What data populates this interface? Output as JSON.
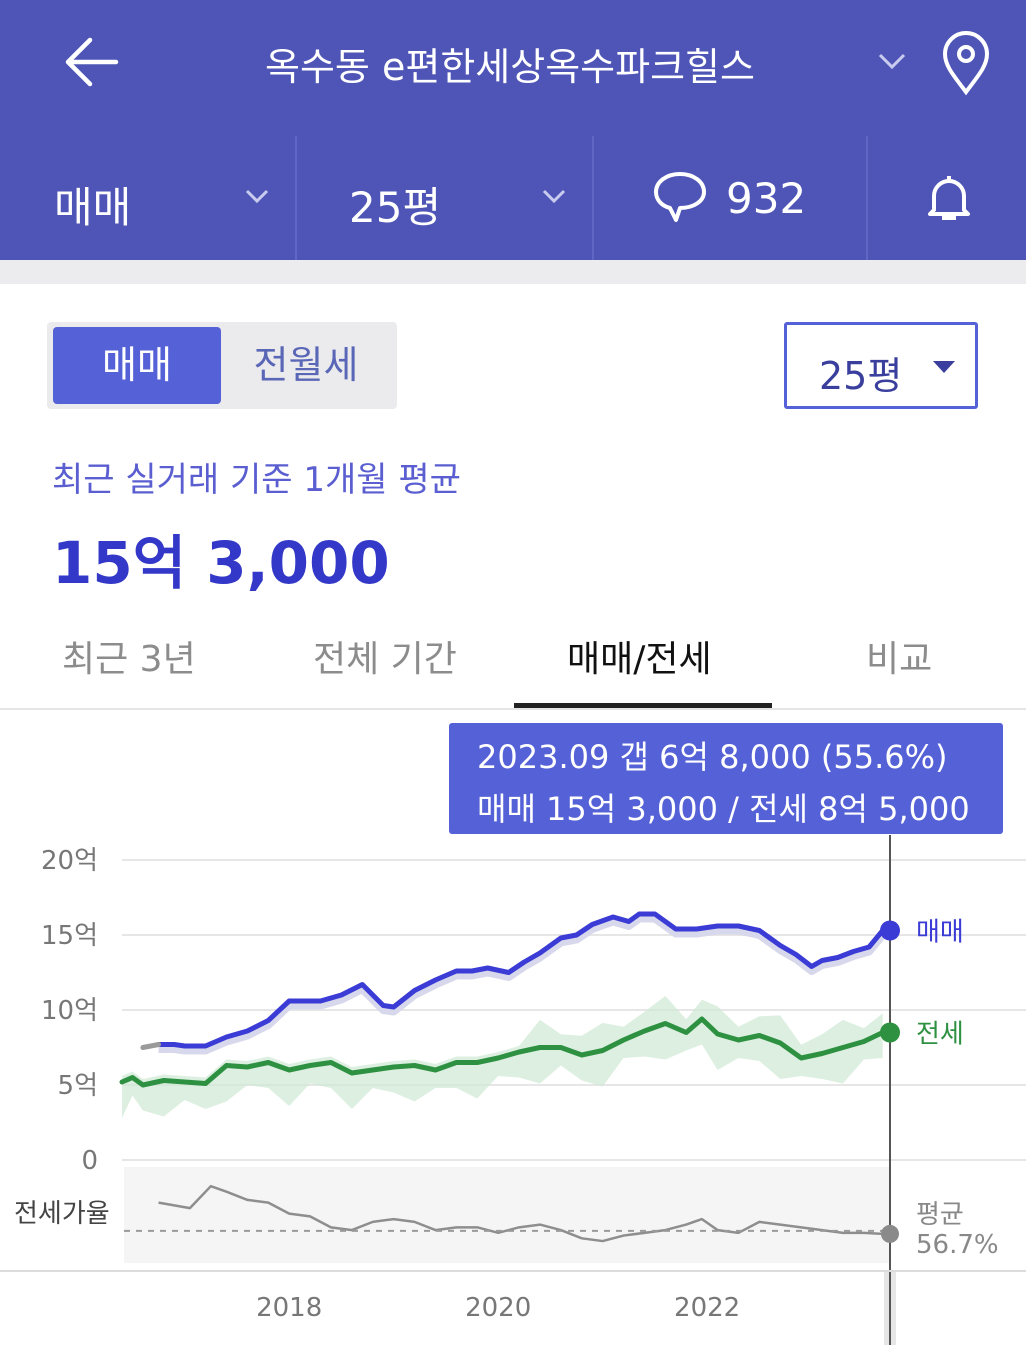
{
  "header": {
    "title": "옥수동 e편한세상옥수파크힐스"
  },
  "subbar": {
    "trade_type": "매매",
    "size": "25평",
    "comment_count": "932"
  },
  "segment": {
    "active": "매매",
    "inactive": "전월세"
  },
  "size_select": {
    "value": "25평"
  },
  "summary": {
    "caption": "최근 실거래 기준 1개월 평균",
    "price": "15억 3,000"
  },
  "tabs": [
    {
      "label": "최근 3년",
      "active": false
    },
    {
      "label": "전체 기간",
      "active": false
    },
    {
      "label": "매매/전세",
      "active": true
    },
    {
      "label": "비교",
      "active": false
    }
  ],
  "tooltip": {
    "line1": "2023.09  갭 6억 8,000 (55.6%)",
    "line2": "매매 15억 3,000 / 전세 8억 5,000"
  },
  "colors": {
    "header_bg": "#4e55b6",
    "accent": "#5561d6",
    "sale": "#3b3bd6",
    "jeonse": "#2e9142",
    "ratio": "#8e8e8e"
  },
  "chart_data": {
    "type": "line",
    "y_ticks": [
      "20억",
      "15억",
      "10억",
      "5억",
      "0"
    ],
    "ylim": [
      0,
      20
    ],
    "x_ticks": [
      "2018",
      "2020",
      "2022"
    ],
    "xlim": [
      2016.4,
      2023.75
    ],
    "series": [
      {
        "name": "매매",
        "x": [
          2016.75,
          2016.9,
          2017.0,
          2017.2,
          2017.4,
          2017.6,
          2017.8,
          2018.0,
          2018.15,
          2018.3,
          2018.5,
          2018.7,
          2018.9,
          2019.0,
          2019.2,
          2019.4,
          2019.6,
          2019.75,
          2019.9,
          2020.1,
          2020.25,
          2020.4,
          2020.6,
          2020.75,
          2020.9,
          2021.1,
          2021.25,
          2021.35,
          2021.5,
          2021.7,
          2021.9,
          2022.1,
          2022.3,
          2022.5,
          2022.7,
          2022.85,
          2023.0,
          2023.1,
          2023.25,
          2023.4,
          2023.55,
          2023.68
        ],
        "values": [
          7.7,
          7.7,
          7.6,
          7.6,
          8.2,
          8.6,
          9.3,
          10.6,
          10.6,
          10.6,
          11.0,
          11.7,
          10.3,
          10.2,
          11.3,
          12.0,
          12.6,
          12.6,
          12.8,
          12.5,
          13.2,
          13.8,
          14.8,
          15.0,
          15.7,
          16.2,
          15.9,
          16.4,
          16.4,
          15.4,
          15.4,
          15.6,
          15.6,
          15.3,
          14.3,
          13.7,
          12.9,
          13.3,
          13.5,
          13.9,
          14.2,
          15.3
        ]
      },
      {
        "name": "전세",
        "x": [
          2016.4,
          2016.5,
          2016.6,
          2016.8,
          2017.0,
          2017.2,
          2017.4,
          2017.6,
          2017.8,
          2018.0,
          2018.2,
          2018.4,
          2018.6,
          2018.8,
          2019.0,
          2019.2,
          2019.4,
          2019.6,
          2019.8,
          2020.0,
          2020.2,
          2020.4,
          2020.6,
          2020.8,
          2021.0,
          2021.2,
          2021.4,
          2021.6,
          2021.8,
          2021.95,
          2022.1,
          2022.3,
          2022.5,
          2022.7,
          2022.9,
          2023.1,
          2023.3,
          2023.5,
          2023.68
        ],
        "values": [
          5.2,
          5.5,
          5.0,
          5.3,
          5.2,
          5.1,
          6.3,
          6.2,
          6.5,
          6.0,
          6.3,
          6.5,
          5.8,
          6.0,
          6.2,
          6.3,
          6.0,
          6.5,
          6.5,
          6.8,
          7.2,
          7.5,
          7.5,
          7.0,
          7.3,
          8.0,
          8.6,
          9.1,
          8.5,
          9.4,
          8.4,
          8.0,
          8.3,
          7.8,
          6.8,
          7.1,
          7.5,
          7.9,
          8.5
        ]
      },
      {
        "name": "전세가율",
        "x": [
          2016.75,
          2016.9,
          2017.05,
          2017.25,
          2017.4,
          2017.6,
          2017.8,
          2018.0,
          2018.2,
          2018.4,
          2018.6,
          2018.8,
          2019.0,
          2019.2,
          2019.4,
          2019.6,
          2019.8,
          2020.0,
          2020.2,
          2020.4,
          2020.6,
          2020.8,
          2021.0,
          2021.2,
          2021.4,
          2021.6,
          2021.8,
          2021.95,
          2022.1,
          2022.3,
          2022.5,
          2022.7,
          2022.9,
          2023.1,
          2023.3,
          2023.5,
          2023.68
        ],
        "values": [
          67,
          66,
          65,
          73,
          71,
          68,
          67,
          63,
          62,
          58,
          57,
          60,
          61,
          60,
          57,
          58,
          58,
          56,
          58,
          59,
          57,
          54,
          53,
          55,
          56,
          57,
          59,
          61,
          57,
          56,
          60,
          59,
          58,
          57,
          56,
          56,
          55.6
        ]
      }
    ],
    "ratio_avg_label": "평균",
    "ratio_avg_value": "56.7%",
    "ratio_label": "전세가율",
    "end_labels": [
      "매매",
      "전세"
    ]
  }
}
